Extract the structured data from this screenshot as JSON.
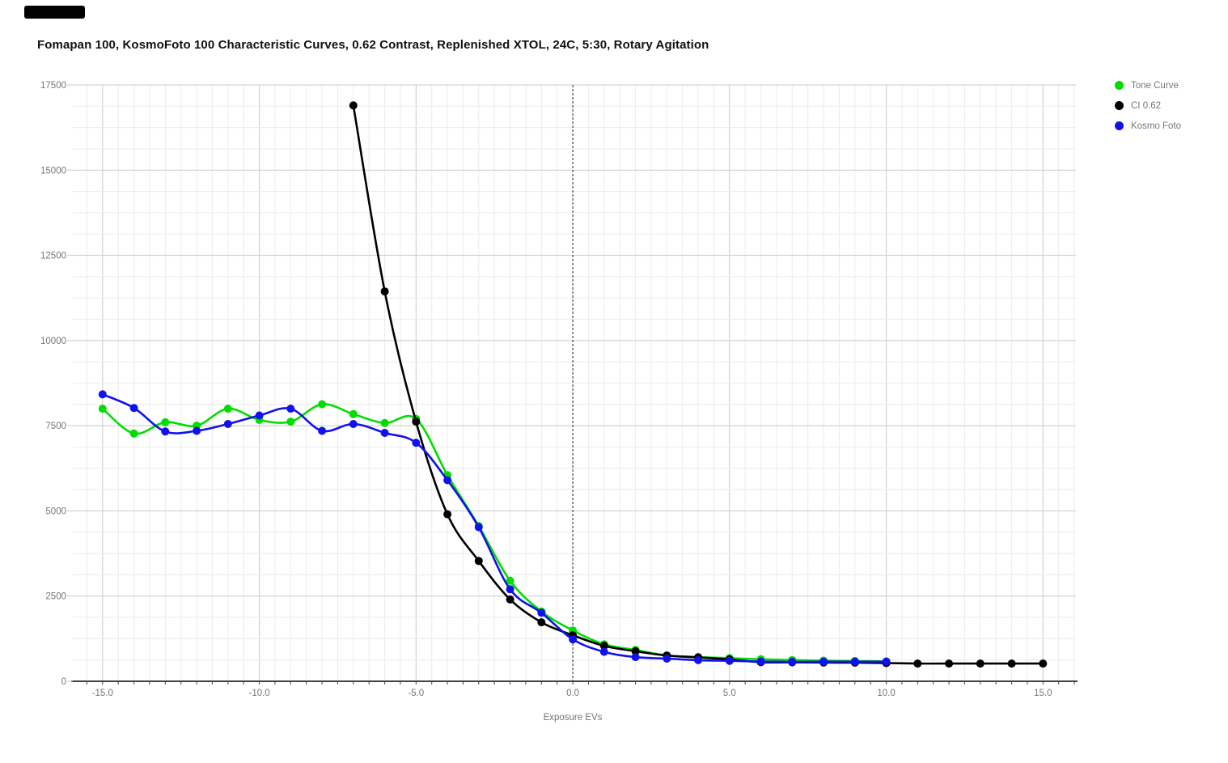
{
  "page": {
    "background": "#ffffff",
    "top_left_bar_color": "#000000"
  },
  "chart_data": {
    "type": "line",
    "title": "Fomapan 100, KosmoFoto 100 Characteristic Curves, 0.62 Contrast, Replenished XTOL, 24C, 5:30, Rotary Agitation",
    "xlabel": "Exposure EVs",
    "ylabel": "",
    "xlim": [
      -15.95,
      16.05
    ],
    "ylim": [
      0,
      17500
    ],
    "grid": true,
    "minor_grid_x_step": 0.5,
    "minor_grid_y_step": 625,
    "reference_line_x": 0,
    "legend_position": "top-right",
    "xticks": {
      "values": [
        -15,
        -10,
        -5,
        0,
        5,
        10,
        15
      ],
      "labels": [
        "-15.0",
        "-10.0",
        "-5.0",
        "0.0",
        "5.0",
        "10.0",
        "15.0"
      ]
    },
    "yticks": {
      "values": [
        0,
        2500,
        5000,
        7500,
        10000,
        12500,
        15000,
        17500
      ],
      "labels": [
        "0",
        "2500",
        "5000",
        "7500",
        "10000",
        "12500",
        "15000",
        "17500"
      ]
    },
    "series": [
      {
        "name": "Tone Curve",
        "color": "#00dd00",
        "x": [
          -15,
          -14,
          -13,
          -12,
          -11,
          -10,
          -9,
          -8,
          -7,
          -6,
          -5,
          -4,
          -3,
          -2,
          -1,
          0,
          1,
          2,
          3,
          4,
          5,
          6,
          7,
          8,
          9,
          10
        ],
        "values": [
          8000,
          7270,
          7600,
          7500,
          8000,
          7670,
          7620,
          8130,
          7840,
          7580,
          7700,
          6050,
          4560,
          2950,
          2050,
          1490,
          1085,
          920,
          760,
          712,
          680,
          645,
          625,
          605,
          595,
          585
        ]
      },
      {
        "name": "CI 0.62",
        "color": "#000000",
        "x": [
          -7,
          -6,
          -5,
          -4,
          -3,
          -2,
          -1,
          0,
          1,
          2,
          3,
          4,
          5,
          6,
          7,
          8,
          9,
          10,
          11,
          12,
          13,
          14,
          15
        ],
        "values": [
          16900,
          11440,
          7620,
          4900,
          3530,
          2400,
          1730,
          1350,
          1040,
          880,
          755,
          700,
          640,
          560,
          555,
          550,
          545,
          535,
          520,
          520,
          520,
          520,
          520
        ]
      },
      {
        "name": "Kosmo Foto",
        "color": "#1111ee",
        "x": [
          -15,
          -14,
          -13,
          -12,
          -11,
          -10,
          -9,
          -8,
          -7,
          -6,
          -5,
          -4,
          -3,
          -2,
          -1,
          0,
          1,
          2,
          3,
          4,
          5,
          6,
          7,
          8,
          9,
          10
        ],
        "values": [
          8420,
          8020,
          7330,
          7350,
          7550,
          7800,
          8000,
          7350,
          7550,
          7290,
          7000,
          5900,
          4520,
          2700,
          2010,
          1230,
          865,
          710,
          665,
          620,
          600,
          580,
          570,
          575,
          575,
          575
        ]
      }
    ]
  }
}
